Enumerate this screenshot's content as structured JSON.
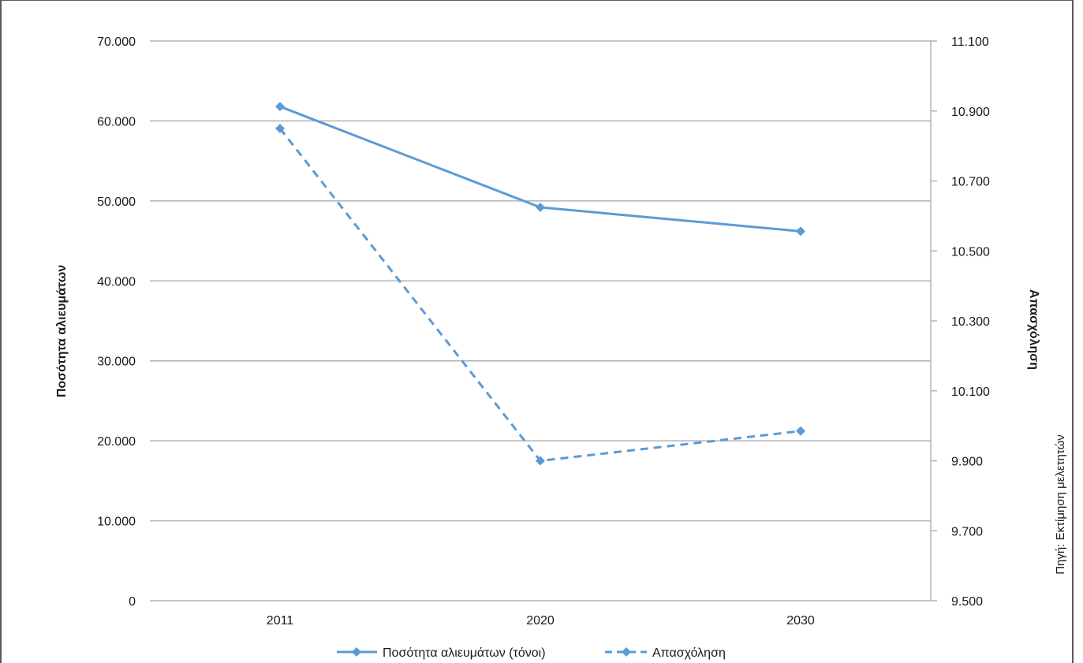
{
  "chart_data": {
    "type": "line",
    "categories": [
      "2011",
      "2020",
      "2030"
    ],
    "series": [
      {
        "name": "Ποσότητα αλιευμάτων (τόνοι)",
        "axis": "left",
        "style": "solid",
        "marker": "diamond",
        "values": [
          61800,
          49200,
          46200
        ]
      },
      {
        "name": "Απασχόληση",
        "axis": "right",
        "style": "dashed",
        "marker": "diamond",
        "values": [
          10850,
          9900,
          9985
        ]
      }
    ],
    "y_left": {
      "label": "Ποσότητα αλιευμάτων",
      "lim": [
        0,
        70000
      ],
      "ticks": [
        0,
        10000,
        20000,
        30000,
        40000,
        50000,
        60000,
        70000
      ],
      "tick_labels": [
        "0",
        "10.000",
        "20.000",
        "30.000",
        "40.000",
        "50.000",
        "60.000",
        "70.000"
      ]
    },
    "y_right": {
      "label": "Απασχόληση",
      "lim": [
        9500,
        11100
      ],
      "ticks": [
        9500,
        9700,
        9900,
        10100,
        10300,
        10500,
        10700,
        10900,
        11100
      ],
      "tick_labels": [
        "9.500",
        "9.700",
        "9.900",
        "10.100",
        "10.300",
        "10.500",
        "10.700",
        "10.900",
        "11.100"
      ]
    },
    "grid": true,
    "legend": "bottom",
    "line_color": "#5b9bd5",
    "grid_color": "#b3b3b3"
  },
  "source_note": "Πηγή: Εκτίμηση μελετητών"
}
